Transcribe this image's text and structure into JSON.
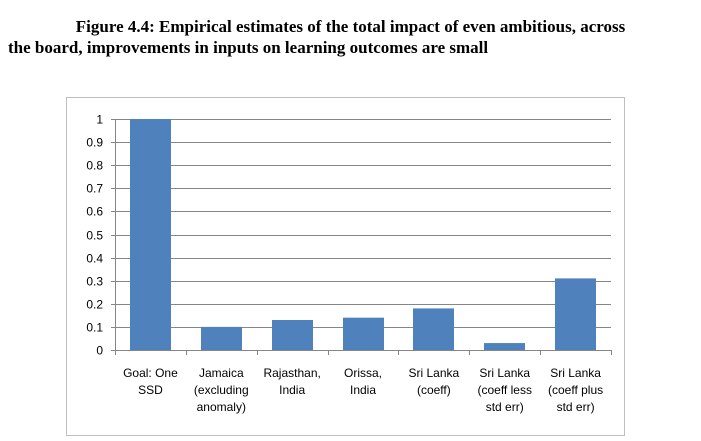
{
  "figure": {
    "title_line1": "Figure 4.4:  Empirical estimates of the total impact of even ambitious, across",
    "title_line2": "the board, improvements in inputs on learning outcomes are small"
  },
  "chart_data": {
    "type": "bar",
    "title": "",
    "xlabel": "",
    "ylabel": "",
    "ylim": [
      0,
      1
    ],
    "yticks": [
      0,
      0.1,
      0.2,
      0.3,
      0.4,
      0.5,
      0.6,
      0.7,
      0.8,
      0.9,
      1
    ],
    "ytick_labels": [
      "0",
      "0.1",
      "0.2",
      "0.3",
      "0.4",
      "0.5",
      "0.6",
      "0.7",
      "0.8",
      "0.9",
      "1"
    ],
    "grid": true,
    "legend": "none",
    "categories": [
      [
        "Goal: One",
        "SSD"
      ],
      [
        "Jamaica",
        "(excluding",
        "anomaly)"
      ],
      [
        "Rajasthan,",
        "India"
      ],
      [
        "Orissa,",
        "India"
      ],
      [
        "Sri Lanka",
        "(coeff)"
      ],
      [
        "Sri Lanka",
        "(coeff less",
        "std err)"
      ],
      [
        "Sri Lanka",
        "(coeff plus",
        "std err)"
      ]
    ],
    "values": [
      1.0,
      0.1,
      0.13,
      0.14,
      0.18,
      0.03,
      0.31
    ],
    "bar_color": "#4f81bd",
    "gridline_color": "#868686"
  }
}
